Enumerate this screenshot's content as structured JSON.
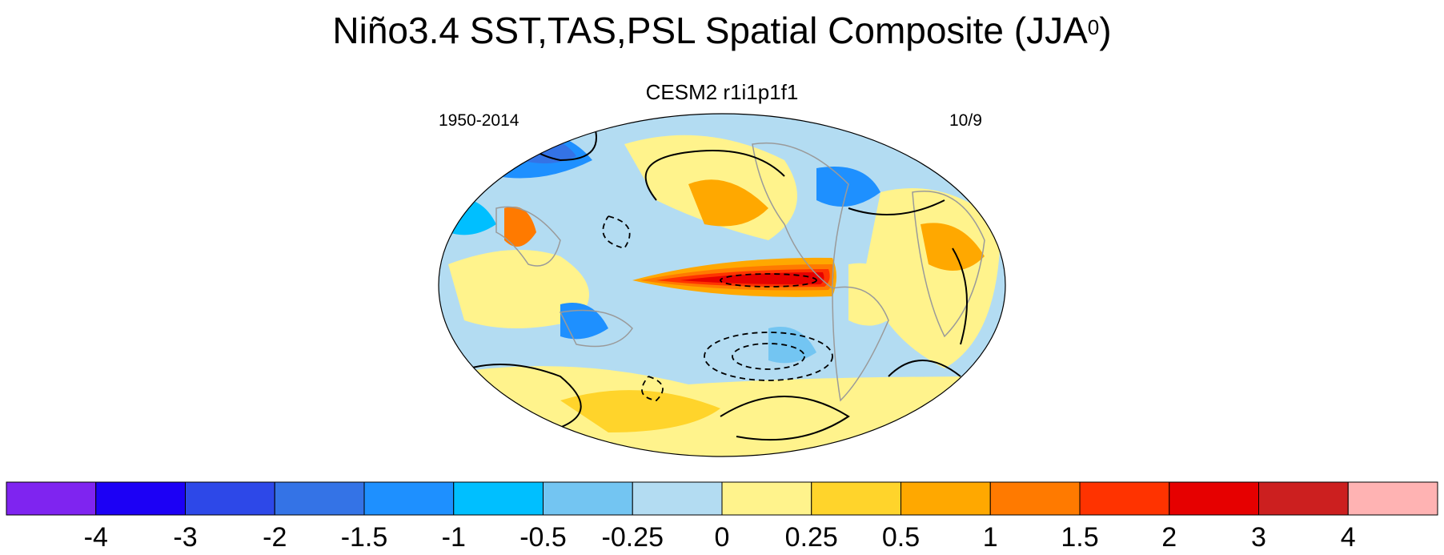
{
  "title_main": "Niño3.4 SST,TAS,PSL Spatial Composite (JJA",
  "title_sup": "0",
  "title_close": ")",
  "subtitle": "CESM2 r1i1p1f1",
  "left_string": "1950-2014",
  "right_string": "10/9",
  "colorbar": {
    "colors": [
      "#7f24f0",
      "#1c00f5",
      "#2d48e8",
      "#3473e6",
      "#1e90ff",
      "#00bfff",
      "#73c5f2",
      "#b3dcf2",
      "#fff38c",
      "#ffd42b",
      "#ffa800",
      "#ff7a00",
      "#ff3300",
      "#e60000",
      "#cc1f1f",
      "#ffb3b3"
    ],
    "labels": [
      "-4",
      "-3",
      "-2",
      "-1.5",
      "-1",
      "-0.5",
      "-0.25",
      "0",
      "0.25",
      "0.5",
      "1",
      "1.5",
      "2",
      "3",
      "4"
    ]
  },
  "map_palette": {
    "ocean_base": "#b3dcf2",
    "land_outline": "#9a9a9a",
    "contour": "#000000"
  }
}
